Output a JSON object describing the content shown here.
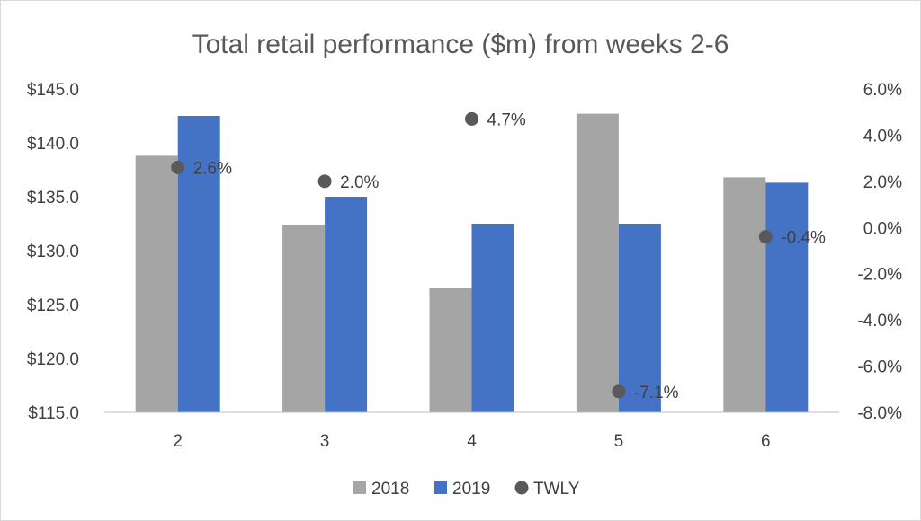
{
  "chart_data": {
    "type": "bar",
    "title": "Total retail performance ($m) from weeks 2-6",
    "categories": [
      "2",
      "3",
      "4",
      "5",
      "6"
    ],
    "series": [
      {
        "name": "2018",
        "type": "bar",
        "axis": "left",
        "color": "#a5a5a5",
        "values": [
          138.8,
          132.4,
          126.5,
          142.7,
          136.8
        ]
      },
      {
        "name": "2019",
        "type": "bar",
        "axis": "left",
        "color": "#4472c4",
        "values": [
          142.5,
          135.0,
          132.5,
          132.5,
          136.3
        ]
      },
      {
        "name": "TWLY",
        "type": "scatter",
        "axis": "right",
        "color": "#595959",
        "values": [
          2.6,
          2.0,
          4.7,
          -7.1,
          -0.4
        ],
        "labels": [
          "2.6%",
          "2.0%",
          "4.7%",
          "-7.1%",
          "-0.4%"
        ]
      }
    ],
    "y_left": {
      "min": 115,
      "max": 145,
      "step": 5,
      "tick_labels": [
        "$115.0",
        "$120.0",
        "$125.0",
        "$130.0",
        "$135.0",
        "$140.0",
        "$145.0"
      ]
    },
    "y_right": {
      "min": -8,
      "max": 6,
      "step": 2,
      "tick_labels": [
        "-8.0%",
        "-6.0%",
        "-4.0%",
        "-2.0%",
        "0.0%",
        "2.0%",
        "4.0%",
        "6.0%"
      ]
    },
    "grid": false,
    "legend_position": "bottom"
  }
}
